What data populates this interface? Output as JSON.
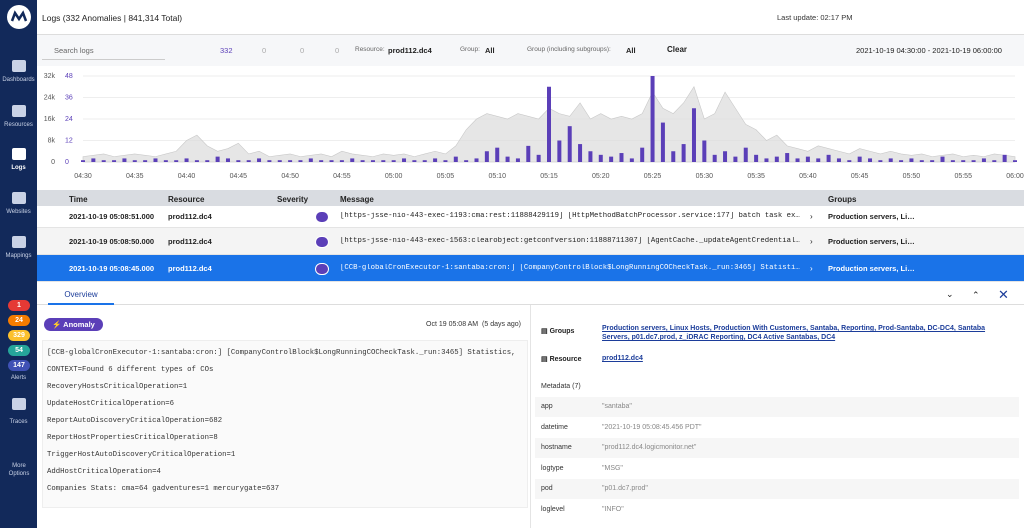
{
  "sidebar": {
    "items": [
      "Dashboards",
      "Resources",
      "Logs",
      "Websites",
      "Mappings"
    ],
    "alert_counts": [
      "1",
      "24",
      "329",
      "54",
      "147"
    ],
    "alerts": "Alerts",
    "traces": "Traces",
    "more": "More Options"
  },
  "header": {
    "title": "Logs (332 Anomalies | 841,314 Total)",
    "last_update": "Last update: 02:17 PM"
  },
  "filters": {
    "search": "Search logs",
    "anomalies": "332",
    "counts": [
      "0",
      "0",
      "0"
    ],
    "resource_label": "Resource:",
    "resource": "prod112.dc4",
    "group_label": "Group:",
    "group": "All",
    "subgroup_label": "Group (including subgroups):",
    "subgroup": "All",
    "clear": "Clear",
    "range": "2021-10-19 04:30:00 - 2021-10-19 06:00:00"
  },
  "chart_data": {
    "type": "bar",
    "xticks": [
      "04:30",
      "04:35",
      "04:40",
      "04:45",
      "04:50",
      "04:55",
      "05:00",
      "05:05",
      "05:10",
      "05:15",
      "05:20",
      "05:25",
      "05:30",
      "05:35",
      "05:40",
      "05:45",
      "05:50",
      "05:55",
      "06:00"
    ],
    "ylim": [
      0,
      32000
    ],
    "yticks": [
      0,
      {
        "value": 8000,
        "label": "8k"
      },
      {
        "value": 16000,
        "label": "16k"
      },
      {
        "value": 24000,
        "label": "24k"
      },
      {
        "value": 32000,
        "label": "32k"
      }
    ],
    "y2lim": [
      0,
      48
    ],
    "y2ticks": [
      0,
      12,
      24,
      36,
      48
    ],
    "series": [
      {
        "color": "#dcdcdc",
        "kind": "area",
        "values": [
          2000,
          2500,
          3000,
          2000,
          2500,
          3000,
          2500,
          2000,
          3000,
          4000,
          8000,
          10000,
          6000,
          4000,
          5000,
          7000,
          3000,
          4000,
          2000,
          2500,
          3000,
          2000,
          2500,
          3000,
          2000,
          4000,
          3000,
          2500,
          2000,
          3000,
          2500,
          3000,
          2000,
          3000,
          4000,
          3000,
          6000,
          12000,
          16000,
          18000,
          17000,
          16000,
          18000,
          17000,
          16000,
          20000,
          18000,
          17000,
          22000,
          16000,
          18000,
          16000,
          17000,
          16000,
          18000,
          26000,
          20000,
          18000,
          22000,
          28000,
          16000,
          18000,
          26000,
          20000,
          14000,
          12000,
          8000,
          10000,
          6000,
          5000,
          4000,
          6000,
          5000,
          4000,
          3000,
          5000,
          4000,
          3000,
          4000,
          3000,
          2500,
          3000,
          2000,
          2500,
          3000,
          2000,
          2500,
          2000,
          3000,
          2500,
          2000
        ]
      },
      {
        "color": "#5b3fb8",
        "kind": "bar",
        "axis": "y2",
        "values": [
          1,
          2,
          1,
          1,
          2,
          1,
          1,
          2,
          1,
          1,
          2,
          1,
          1,
          3,
          2,
          1,
          1,
          2,
          1,
          1,
          1,
          1,
          2,
          1,
          1,
          1,
          2,
          1,
          1,
          1,
          1,
          2,
          1,
          1,
          2,
          1,
          3,
          1,
          2,
          6,
          8,
          3,
          2,
          9,
          4,
          42,
          12,
          20,
          10,
          6,
          4,
          3,
          5,
          2,
          8,
          48,
          22,
          6,
          10,
          30,
          12,
          4,
          6,
          3,
          8,
          4,
          2,
          3,
          5,
          2,
          3,
          2,
          4,
          2,
          1,
          3,
          2,
          1,
          2,
          1,
          2,
          1,
          1,
          3,
          1,
          1,
          1,
          2,
          1,
          4,
          1
        ]
      }
    ]
  },
  "table": {
    "columns": [
      "Time",
      "Resource",
      "Severity",
      "Message",
      "Groups"
    ],
    "rows": [
      [
        "2021-10-19 05:08:51.000",
        "prod112.dc4",
        "[https-jsse-nio-443-exec-1193:cma:rest:11888429119] [HttpMethodBatchProcessor.service:177] batch task ex…",
        "Production servers, Li…"
      ],
      [
        "2021-10-19 05:08:50.000",
        "prod112.dc4",
        "[https-jsse-nio-443-exec-1563:clearobject:getconfversion:11888711307] [AgentCache._updateAgentCredential…",
        "Production servers, Li…"
      ],
      [
        "2021-10-19 05:08:45.000",
        "prod112.dc4",
        "[CCB-globalCronExecutor-1:santaba:cron:] [CompanyControlBlock$LongRunningCOCheckTask._run:3465] Statisti…",
        "Production servers, Li…"
      ]
    ]
  },
  "detail": {
    "tab": "Overview",
    "badge": "Anomaly",
    "date": "Oct 19 05:08 AM",
    "ago": "(5 days ago)",
    "message_lines": [
      "[CCB-globalCronExecutor-1:santaba:cron:] [CompanyControlBlock$LongRunningCOCheckTask._run:3465] Statistics,",
      "CONTEXT=Found 6 different types of COs",
      "RecoveryHostsCriticalOperation=1",
      "UpdateHostCriticalOperation=6",
      "ReportAutoDiscoveryCriticalOperation=682",
      "ReportHostPropertiesCriticalOperation=8",
      "TriggerHostAutoDiscoveryCriticalOperation=1",
      "AddHostCriticalOperation=4",
      "Companies Stats: cma=64 gadventures=1 mercurygate=637"
    ],
    "groups_label": "Groups",
    "groups_value": "Production servers, Linux Hosts, Production With Customers, Santaba, Reporting, Prod-Santaba, DC-DC4, Santaba Servers, p01.dc7.prod, z_iDRAC Reporting, DC4 Active Santabas, DC4",
    "resource_label": "Resource",
    "resource_value": "prod112.dc4",
    "metadata_title": "Metadata (7)",
    "metadata": [
      [
        "app",
        "\"santaba\""
      ],
      [
        "datetime",
        "\"2021-10-19 05:08:45.456 PDT\""
      ],
      [
        "hostname",
        "\"prod112.dc4.logicmonitor.net\""
      ],
      [
        "logtype",
        "\"MSG\""
      ],
      [
        "pod",
        "\"p01.dc7.prod\""
      ],
      [
        "loglevel",
        "\"INFO\""
      ]
    ]
  }
}
